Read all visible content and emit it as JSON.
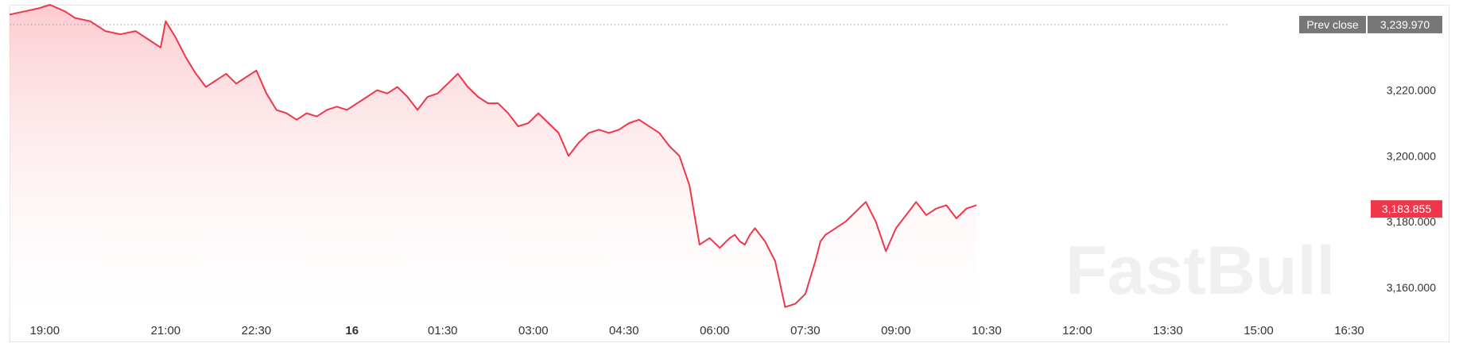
{
  "watermark": "FastBull",
  "chart_data": {
    "type": "area",
    "title": "",
    "xlabel": "",
    "ylabel": "",
    "ylim": [
      3152,
      3246
    ],
    "y_ticks": [
      3220,
      3200,
      3180,
      3160
    ],
    "y_tick_labels": [
      "3,220.000",
      "3,200.000",
      "3,180.000",
      "3,160.000"
    ],
    "x_ticks": [
      "19:00",
      "21:00",
      "22:30",
      "16",
      "01:30",
      "03:00",
      "04:30",
      "06:00",
      "07:30",
      "09:00",
      "10:30",
      "12:00",
      "13:30",
      "15:00",
      "16:30"
    ],
    "x_tick_values": [
      -5,
      115,
      205,
      300,
      390,
      480,
      570,
      660,
      750,
      840,
      930,
      1020,
      1110,
      1200,
      1290
    ],
    "xlim": [
      -40,
      1320
    ],
    "prev_close": {
      "label": "Prev close",
      "value": 3239.97,
      "value_label": "3,239.970"
    },
    "last": {
      "value": 3183.855,
      "value_label": "3,183.855"
    },
    "colors": {
      "line": "#f0364a",
      "area_top": "#fbc6cb",
      "prev_tag": "#777777",
      "last_tag": "#f0364a"
    },
    "series": [
      {
        "x": [
          -40,
          -25,
          -10,
          0,
          15,
          25,
          40,
          55,
          70,
          85,
          100,
          110,
          115,
          125,
          135,
          145,
          155,
          165,
          175,
          185,
          195,
          205,
          215,
          225,
          235,
          245,
          255,
          265,
          275,
          285,
          295,
          305,
          315,
          325,
          335,
          345,
          355,
          365,
          375,
          385,
          395,
          405,
          415,
          425,
          435,
          445,
          455,
          465,
          475,
          485,
          495,
          505,
          515,
          525,
          535,
          545,
          555,
          565,
          575,
          585,
          595,
          605,
          615,
          625,
          635,
          645,
          655,
          665,
          675,
          680,
          685,
          690,
          695,
          700,
          710,
          720,
          730,
          740,
          750,
          755,
          760,
          765,
          770,
          780,
          790,
          800,
          810,
          820,
          830,
          840,
          850,
          860,
          870,
          880,
          890,
          900,
          910,
          920
        ],
        "y": [
          3243,
          3244,
          3245,
          3246,
          3244,
          3242,
          3241,
          3238,
          3237,
          3238,
          3235,
          3233,
          3241,
          3236,
          3230,
          3225,
          3221,
          3223,
          3225,
          3222,
          3224,
          3226,
          3219,
          3214,
          3213,
          3211,
          3213,
          3212,
          3214,
          3215,
          3214,
          3216,
          3218,
          3220,
          3219,
          3221,
          3218,
          3214,
          3218,
          3219,
          3222,
          3225,
          3221,
          3218,
          3216,
          3216,
          3213,
          3209,
          3210,
          3213,
          3210,
          3207,
          3200,
          3204,
          3207,
          3208,
          3207,
          3208,
          3210,
          3211,
          3209,
          3207,
          3203,
          3200,
          3191,
          3173,
          3175,
          3172,
          3175,
          3176,
          3174,
          3173,
          3176,
          3178,
          3174,
          3168,
          3154,
          3155,
          3158,
          3163,
          3168,
          3174,
          3176,
          3178,
          3180,
          3183,
          3186,
          3180,
          3171,
          3178,
          3182,
          3186,
          3182,
          3184,
          3185,
          3181,
          3184,
          3185
        ]
      }
    ]
  }
}
